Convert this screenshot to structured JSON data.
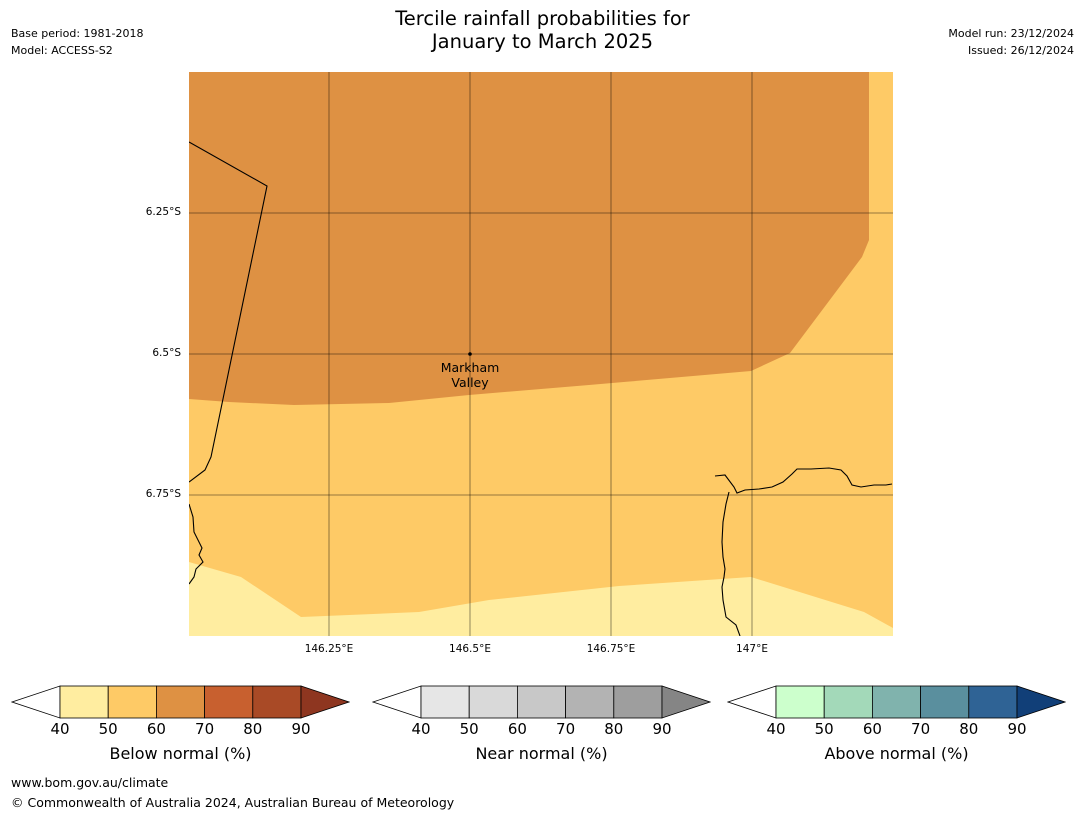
{
  "header": {
    "base_period": "Base period: 1981-2018",
    "model": "Model: ACCESS-S2",
    "model_run": "Model run: 23/12/2024",
    "issued": "Issued: 26/12/2024",
    "title_line1": "Tercile rainfall probabilities for",
    "title_line2": "January to March 2025"
  },
  "map": {
    "lat_labels": [
      "6.25°S",
      "6.5°S",
      "6.75°S"
    ],
    "lon_labels": [
      "146.25°E",
      "146.5°E",
      "146.75°E",
      "147°E"
    ],
    "place": {
      "line1": "Markham",
      "line2": "Valley"
    }
  },
  "colorbars": [
    {
      "label": "Below normal (%)",
      "ticks": [
        "40",
        "50",
        "60",
        "70",
        "80",
        "90"
      ],
      "colors": [
        "#ffeda0",
        "#feca66",
        "#de9143",
        "#c8602f",
        "#a94a26"
      ],
      "extend": "#8e3620"
    },
    {
      "label": "Near normal (%)",
      "ticks": [
        "40",
        "50",
        "60",
        "70",
        "80",
        "90"
      ],
      "colors": [
        "#e6e6e6",
        "#d9d9d9",
        "#c8c8c8",
        "#b3b3b3",
        "#9e9e9e"
      ],
      "extend": "#858585"
    },
    {
      "label": "Above normal (%)",
      "ticks": [
        "40",
        "50",
        "60",
        "70",
        "80",
        "90"
      ],
      "colors": [
        "#ccffcc",
        "#a3d9b9",
        "#80b3ad",
        "#5a8f9e",
        "#2f6395"
      ],
      "extend": "#113f78"
    }
  ],
  "footer": {
    "url": "www.bom.gov.au/climate",
    "copyright": "© Commonwealth of Australia 2024, Australian Bureau of Meteorology"
  }
}
